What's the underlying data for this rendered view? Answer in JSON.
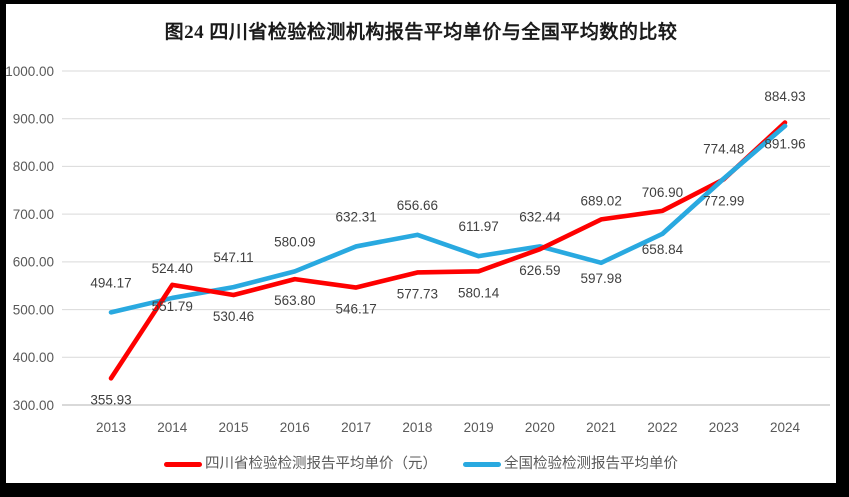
{
  "chart_data": {
    "type": "line",
    "title": "图24  四川省检验检测机构报告平均单价与全国平均数的比较",
    "categories": [
      "2013",
      "2014",
      "2015",
      "2016",
      "2017",
      "2018",
      "2019",
      "2020",
      "2021",
      "2022",
      "2023",
      "2024"
    ],
    "series": [
      {
        "id": "sichuan",
        "name": "四川省检验检测报告平均单价（元）",
        "color": "#fe0000",
        "values": [
          355.93,
          551.79,
          530.46,
          563.8,
          546.17,
          577.73,
          580.14,
          626.59,
          689.02,
          706.9,
          772.99,
          891.96
        ],
        "label_side": [
          "below",
          "below",
          "below",
          "below",
          "below",
          "below",
          "below",
          "below",
          "above",
          "above",
          "below",
          "below"
        ]
      },
      {
        "id": "national",
        "name": "全国检验检测报告平均单价",
        "color": "#29a9e0",
        "values": [
          494.17,
          524.4,
          547.11,
          580.09,
          632.31,
          656.66,
          611.97,
          632.44,
          597.98,
          658.84,
          774.48,
          884.93
        ],
        "label_side": [
          "above",
          "above",
          "above",
          "above",
          "above",
          "above",
          "above",
          "above",
          "below",
          "below",
          "above",
          "above"
        ]
      }
    ],
    "xlabel": "",
    "ylabel": "",
    "ylim": [
      300,
      1000
    ],
    "ytick_step": 100,
    "ytick_labels": [
      "300.00",
      "400.00",
      "500.00",
      "600.00",
      "700.00",
      "800.00",
      "900.00",
      "1000.00"
    ],
    "grid": true,
    "legend_position": "bottom",
    "colors": {
      "gridline": "#d9d9d9",
      "axis_line": "#c2c2c2",
      "tick_text": "#595959",
      "data_label_text": "#404040",
      "title_text": "#1a1a1a",
      "background": "#ffffff",
      "border": "#000000"
    }
  }
}
